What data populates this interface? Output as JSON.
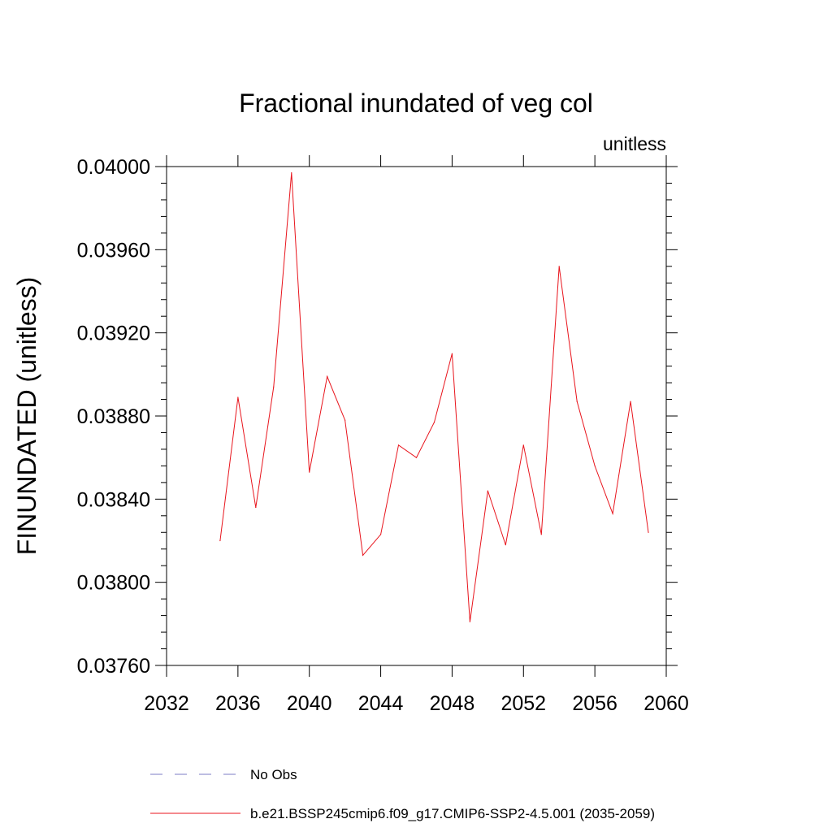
{
  "chart_data": {
    "type": "line",
    "title": "Fractional inundated of veg col",
    "units_label": "unitless",
    "ylabel": "FINUNDATED  (unitless)",
    "xlabel": "",
    "xlim": [
      2032,
      2060
    ],
    "ylim": [
      0.0376,
      0.04
    ],
    "x_ticks": [
      2032,
      2036,
      2040,
      2044,
      2048,
      2052,
      2056,
      2060
    ],
    "x_tick_labels": [
      "2032",
      "2036",
      "2040",
      "2044",
      "2048",
      "2052",
      "2056",
      "2060"
    ],
    "y_ticks": [
      0.0376,
      0.038,
      0.0384,
      0.0388,
      0.0392,
      0.0396,
      0.04
    ],
    "y_tick_labels": [
      "0.03760",
      "0.03800",
      "0.03840",
      "0.03880",
      "0.03920",
      "0.03960",
      "0.04000"
    ],
    "series": [
      {
        "name": "b.e21.BSSP245cmip6.f09_g17.CMIP6-SSP2-4.5.001 (2035-2059)",
        "color": "#e8141c",
        "x": [
          2035,
          2036,
          2037,
          2038,
          2039,
          2040,
          2041,
          2042,
          2043,
          2044,
          2045,
          2046,
          2047,
          2048,
          2049,
          2050,
          2051,
          2052,
          2053,
          2054,
          2055,
          2056,
          2057,
          2058,
          2059
        ],
        "values": [
          0.0382,
          0.03889,
          0.03836,
          0.03894,
          0.03997,
          0.03853,
          0.03899,
          0.03878,
          0.03813,
          0.03823,
          0.03866,
          0.0386,
          0.03877,
          0.0391,
          0.03781,
          0.03844,
          0.03818,
          0.03866,
          0.03823,
          0.03952,
          0.03887,
          0.03856,
          0.03833,
          0.03887,
          0.03824
        ]
      }
    ],
    "legend": [
      {
        "label": "No Obs",
        "style": "dashed",
        "color": "#7b7bc4"
      },
      {
        "label": "b.e21.BSSP245cmip6.f09_g17.CMIP6-SSP2-4.5.001 (2035-2059)",
        "style": "solid",
        "color": "#e8141c"
      }
    ]
  }
}
